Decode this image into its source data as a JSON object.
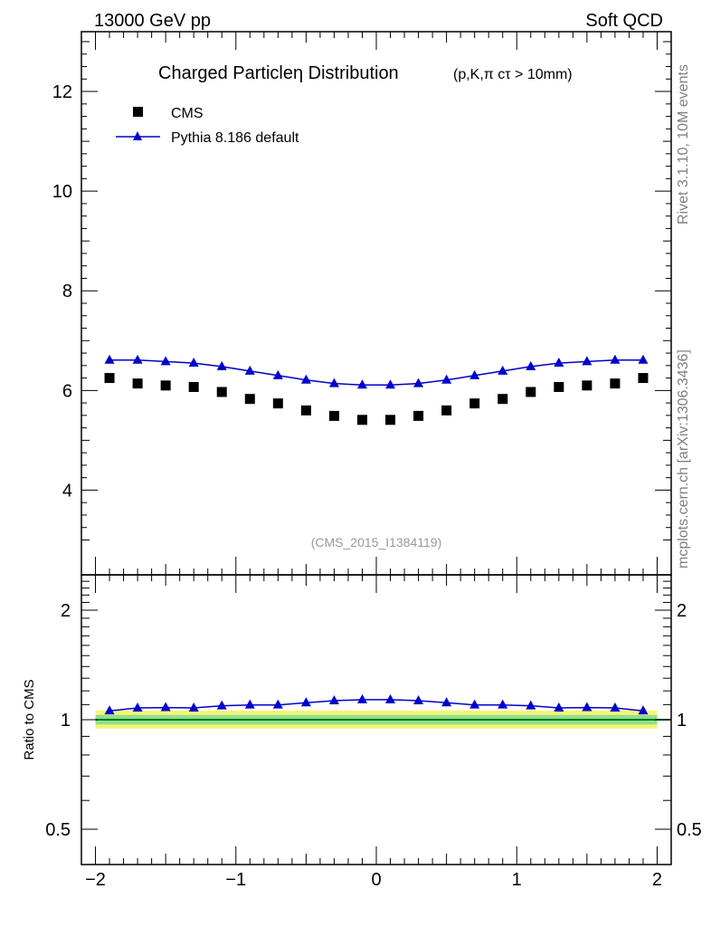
{
  "header": {
    "left": "13000 GeV pp",
    "right": "Soft QCD"
  },
  "side_labels": {
    "rivet": "Rivet 3.1.10,  10M events",
    "mcplots": "mcplots.cern.ch [arXiv:1306.3436]"
  },
  "chart_data": [
    {
      "type": "scatter",
      "panel": "main",
      "title": "Charged Particleη Distribution",
      "subtitle": "(p,K,π cτ > 10mm)",
      "analysis_label": "(CMS_2015_I1384119)",
      "xlabel": "",
      "ylabel": "",
      "xlim": [
        -2.1,
        2.1
      ],
      "ylim": [
        2.3,
        13.2
      ],
      "x_ticks": [
        -2,
        -1,
        0,
        1,
        2
      ],
      "y_ticks": [
        4,
        6,
        8,
        10,
        12
      ],
      "y_tick_labels": [
        "4",
        "6",
        "8",
        "10",
        "12"
      ],
      "legend": [
        "CMS",
        "Pythia 8.186 default"
      ],
      "legend_position": "top-left",
      "x": [
        -1.9,
        -1.7,
        -1.5,
        -1.3,
        -1.1,
        -0.9,
        -0.7,
        -0.5,
        -0.3,
        -0.1,
        0.1,
        0.3,
        0.5,
        0.7,
        0.9,
        1.1,
        1.3,
        1.5,
        1.7,
        1.9
      ],
      "series": [
        {
          "name": "CMS",
          "marker": "square",
          "color": "#000000",
          "values": [
            6.25,
            6.14,
            6.1,
            6.07,
            5.97,
            5.83,
            5.74,
            5.6,
            5.49,
            5.41,
            5.41,
            5.49,
            5.6,
            5.74,
            5.83,
            5.97,
            6.07,
            6.1,
            6.14,
            6.25
          ]
        },
        {
          "name": "Pythia 8.186 default",
          "marker": "triangle",
          "color": "#0000cc",
          "values": [
            6.61,
            6.61,
            6.58,
            6.55,
            6.48,
            6.39,
            6.3,
            6.21,
            6.14,
            6.11,
            6.11,
            6.14,
            6.21,
            6.3,
            6.39,
            6.48,
            6.55,
            6.58,
            6.61,
            6.61
          ]
        }
      ]
    },
    {
      "type": "line",
      "panel": "ratio",
      "ylabel": "Ratio to CMS",
      "xlim": [
        -2.1,
        2.1
      ],
      "ylim": [
        0.4,
        2.5
      ],
      "scale": "log",
      "x_ticks": [
        -2,
        -1,
        0,
        1,
        2
      ],
      "x_tick_labels": [
        "−2",
        "−1",
        "0",
        "1",
        "2"
      ],
      "y_ticks": [
        0.5,
        1,
        2
      ],
      "y_tick_labels": [
        "0.5",
        "1",
        "2"
      ],
      "band_outer": [
        0.945,
        1.06
      ],
      "band_inner": [
        0.97,
        1.03
      ],
      "reference": 1.0,
      "x": [
        -1.9,
        -1.7,
        -1.5,
        -1.3,
        -1.1,
        -0.9,
        -0.7,
        -0.5,
        -0.3,
        -0.1,
        0.1,
        0.3,
        0.5,
        0.7,
        0.9,
        1.1,
        1.3,
        1.5,
        1.7,
        1.9
      ],
      "series": [
        {
          "name": "Pythia 8.186 default",
          "marker": "triangle",
          "color": "#0000cc",
          "values": [
            1.058,
            1.077,
            1.08,
            1.077,
            1.092,
            1.098,
            1.098,
            1.113,
            1.128,
            1.135,
            1.135,
            1.128,
            1.113,
            1.098,
            1.098,
            1.092,
            1.077,
            1.08,
            1.077,
            1.058
          ]
        }
      ]
    }
  ],
  "colors": {
    "band_outer": "#f5f57a",
    "band_inner": "#8ee08e",
    "reference_line": "#007a00",
    "data": "#000000",
    "mc": "#0000cc",
    "analysis_label": "#999999"
  }
}
